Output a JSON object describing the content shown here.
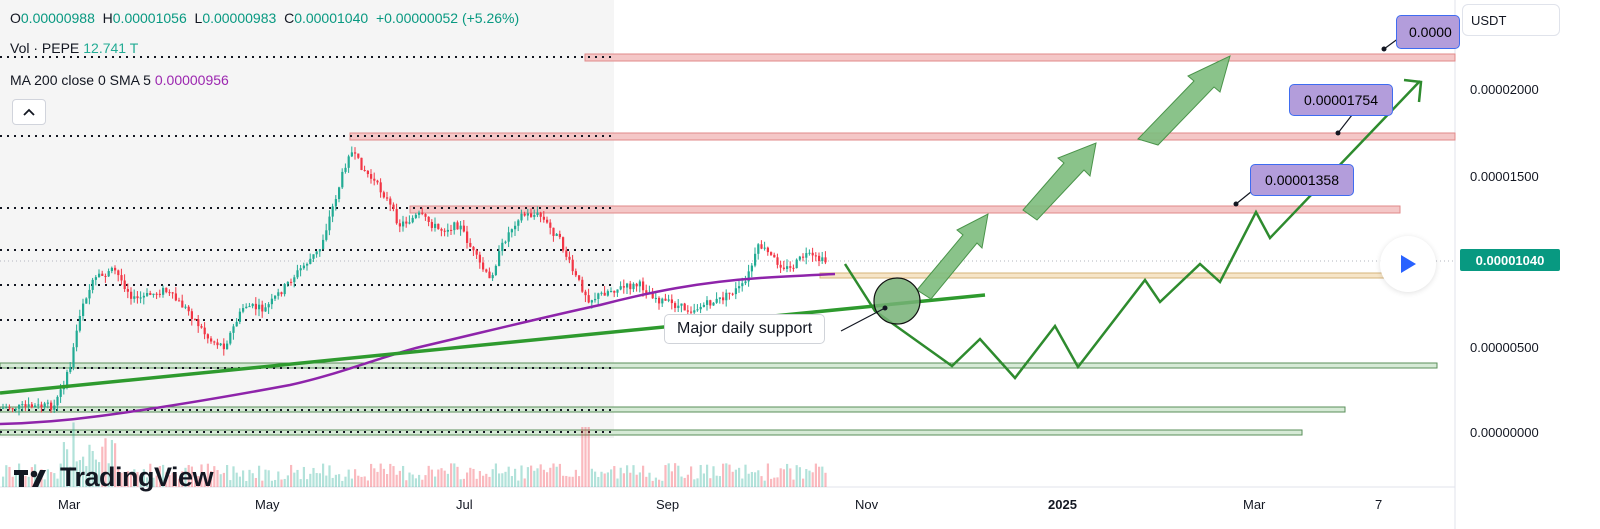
{
  "legend": {
    "open_label": "O",
    "open": "0.00000988",
    "high_label": "H",
    "high": "0.00001056",
    "low_label": "L",
    "low": "0.00000983",
    "close_label": "C",
    "close": "0.00001040",
    "change": "+0.00000052 (+5.26%)"
  },
  "indicators": {
    "vol_label": "Vol · PEPE",
    "vol_value": "12.741 T",
    "ma_label": "MA 200 close 0 SMA 5",
    "ma_value": "0.00000956"
  },
  "price_axis": {
    "currency": "USDT",
    "labels": [
      "0.00002000",
      "0.00001500",
      "0.00000500",
      "0.00000000"
    ],
    "current_price": "0.00001040"
  },
  "time_axis": {
    "labels": [
      "Mar",
      "May",
      "Jul",
      "Sep",
      "Nov",
      "2025",
      "Mar",
      "7"
    ]
  },
  "annotations": {
    "callout_top": "0.0000",
    "callout_mid": "0.00001754",
    "callout_low": "0.00001358",
    "support_label": "Major daily support"
  },
  "branding": {
    "logo_text": "TradingView"
  },
  "colors": {
    "up": "#22ab94",
    "down": "#f23645",
    "ma": "#9c27b0",
    "support_line": "#2e9a2e",
    "resistance_zone": "#f4c7c7",
    "support_zone": "#d6ead6",
    "callout_fill": "#b39ddb",
    "price_tag": "#089981"
  },
  "icons": [
    "chevron-up-icon",
    "play-icon",
    "tradingview-logo-icon"
  ]
}
